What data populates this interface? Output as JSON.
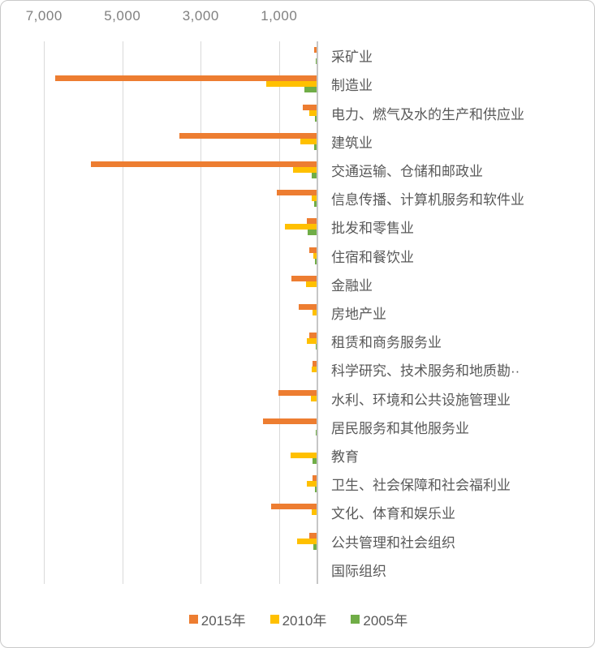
{
  "chart_data": {
    "type": "bar",
    "orientation": "horizontal",
    "bars_anchored": "right",
    "title": "",
    "xlabel": "",
    "ylabel": "",
    "value_axis": {
      "position": "top",
      "reversed": true,
      "min": 0,
      "max": 8000,
      "ticks": [
        7000,
        5000,
        3000,
        1000
      ],
      "tick_labels": [
        "7,000",
        "5,000",
        "3,000",
        "1,000"
      ]
    },
    "grid": true,
    "categories": [
      "采矿业",
      "制造业",
      "电力、燃气及水的生产和供应业",
      "建筑业",
      "交通运输、仓储和邮政业",
      "信息传播、计算机服务和软件业",
      "批发和零售业",
      "住宿和餐饮业",
      "金融业",
      "房地产业",
      "租赁和商务服务业",
      "科学研究、技术服务和地质勘··",
      "水利、环境和公共设施管理业",
      "居民服务和其他服务业",
      "教育",
      "卫生、社会保障和社会福利业",
      "文化、体育和娱乐业",
      "公共管理和社会组织",
      "国际组织"
    ],
    "series": [
      {
        "name": "2015年",
        "color": "#ED7D31",
        "values": [
          100,
          6720,
          400,
          3540,
          5810,
          1050,
          290,
          220,
          690,
          500,
          230,
          145,
          1020,
          1410,
          30,
          150,
          1210,
          230,
          0
        ]
      },
      {
        "name": "2010年",
        "color": "#FFC000",
        "values": [
          30,
          1330,
          230,
          450,
          640,
          175,
          850,
          125,
          310,
          145,
          290,
          165,
          190,
          50,
          700,
          290,
          170,
          540,
          0
        ]
      },
      {
        "name": "2005年",
        "color": "#70AD47",
        "values": [
          70,
          350,
          90,
          100,
          170,
          105,
          270,
          85,
          40,
          40,
          60,
          40,
          40,
          60,
          150,
          85,
          40,
          125,
          0
        ]
      }
    ],
    "legend": {
      "position": "bottom",
      "entries": [
        {
          "label": "2015年",
          "color": "#ED7D31"
        },
        {
          "label": "2010年",
          "color": "#FFC000"
        },
        {
          "label": "2005年",
          "color": "#70AD47"
        }
      ]
    },
    "colors": {
      "gridline": "#d9d9d9",
      "axis_line": "#c6c6c6",
      "tick_text": "#808080",
      "category_text": "#595959",
      "legend_text": "#595959"
    }
  }
}
